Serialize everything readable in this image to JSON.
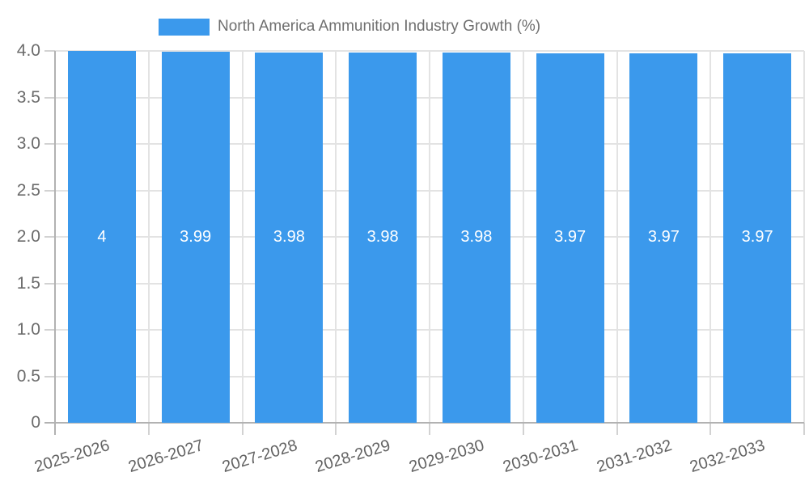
{
  "legend": {
    "label": "North America Ammunition Industry Growth (%)"
  },
  "chart_data": {
    "type": "bar",
    "title": "North America Ammunition Industry Growth (%)",
    "categories": [
      "2025-2026",
      "2026-2027",
      "2027-2028",
      "2028-2029",
      "2029-2030",
      "2030-2031",
      "2031-2032",
      "2032-2033"
    ],
    "values": [
      4,
      3.99,
      3.98,
      3.98,
      3.98,
      3.97,
      3.97,
      3.97
    ],
    "bar_labels": [
      "4",
      "3.99",
      "3.98",
      "3.98",
      "3.98",
      "3.97",
      "3.97",
      "3.97"
    ],
    "xlabel": "",
    "ylabel": "",
    "ylim": [
      0,
      4
    ],
    "yticks": [
      0,
      0.5,
      1,
      1.5,
      2,
      2.5,
      3,
      3.5,
      4
    ],
    "ytick_labels": [
      "0",
      "0.5",
      "1.0",
      "1.5",
      "2.0",
      "2.5",
      "3.0",
      "3.5",
      "4.0"
    ],
    "grid": true,
    "legend_position": "top-center",
    "colors": {
      "bar": "#3b99ec",
      "bar_label": "#ffffff",
      "gridline": "#e3e3e3",
      "axis": "#b2b2b2",
      "minor_tick": "#d2d2d2",
      "y_tick_label": "#6b6b6b",
      "x_tick_label": "#636363",
      "legend_text": "#6f6f6f"
    }
  }
}
